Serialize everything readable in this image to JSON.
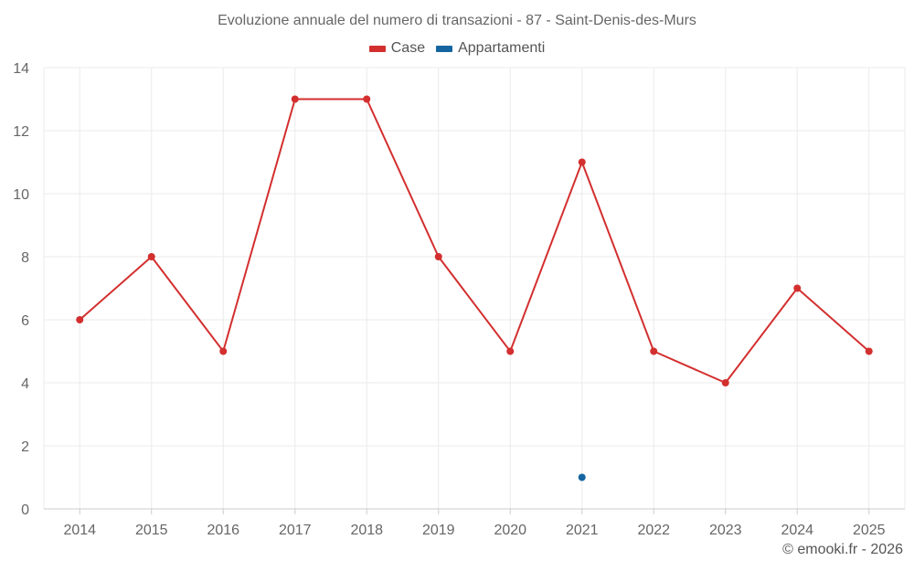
{
  "chart_data": {
    "type": "line",
    "title": "Evoluzione annuale del numero di transazioni - 87 - Saint-Denis-des-Murs",
    "categories": [
      "2014",
      "2015",
      "2016",
      "2017",
      "2018",
      "2019",
      "2020",
      "2021",
      "2022",
      "2023",
      "2024",
      "2025"
    ],
    "series": [
      {
        "name": "Case",
        "color": "#d32f2f",
        "values": [
          6,
          8,
          5,
          13,
          13,
          8,
          5,
          11,
          5,
          4,
          7,
          5
        ]
      },
      {
        "name": "Appartamenti",
        "color": "#1565a0",
        "values": [
          null,
          null,
          null,
          null,
          null,
          null,
          null,
          1,
          null,
          null,
          null,
          null
        ]
      }
    ],
    "ylim": [
      0,
      14
    ],
    "yticks": [
      "0",
      "2",
      "4",
      "6",
      "8",
      "10",
      "12",
      "14"
    ],
    "grid": true,
    "legend_position": "top-center",
    "xlabel": "",
    "ylabel": ""
  },
  "footer": "© emooki.fr - 2026"
}
